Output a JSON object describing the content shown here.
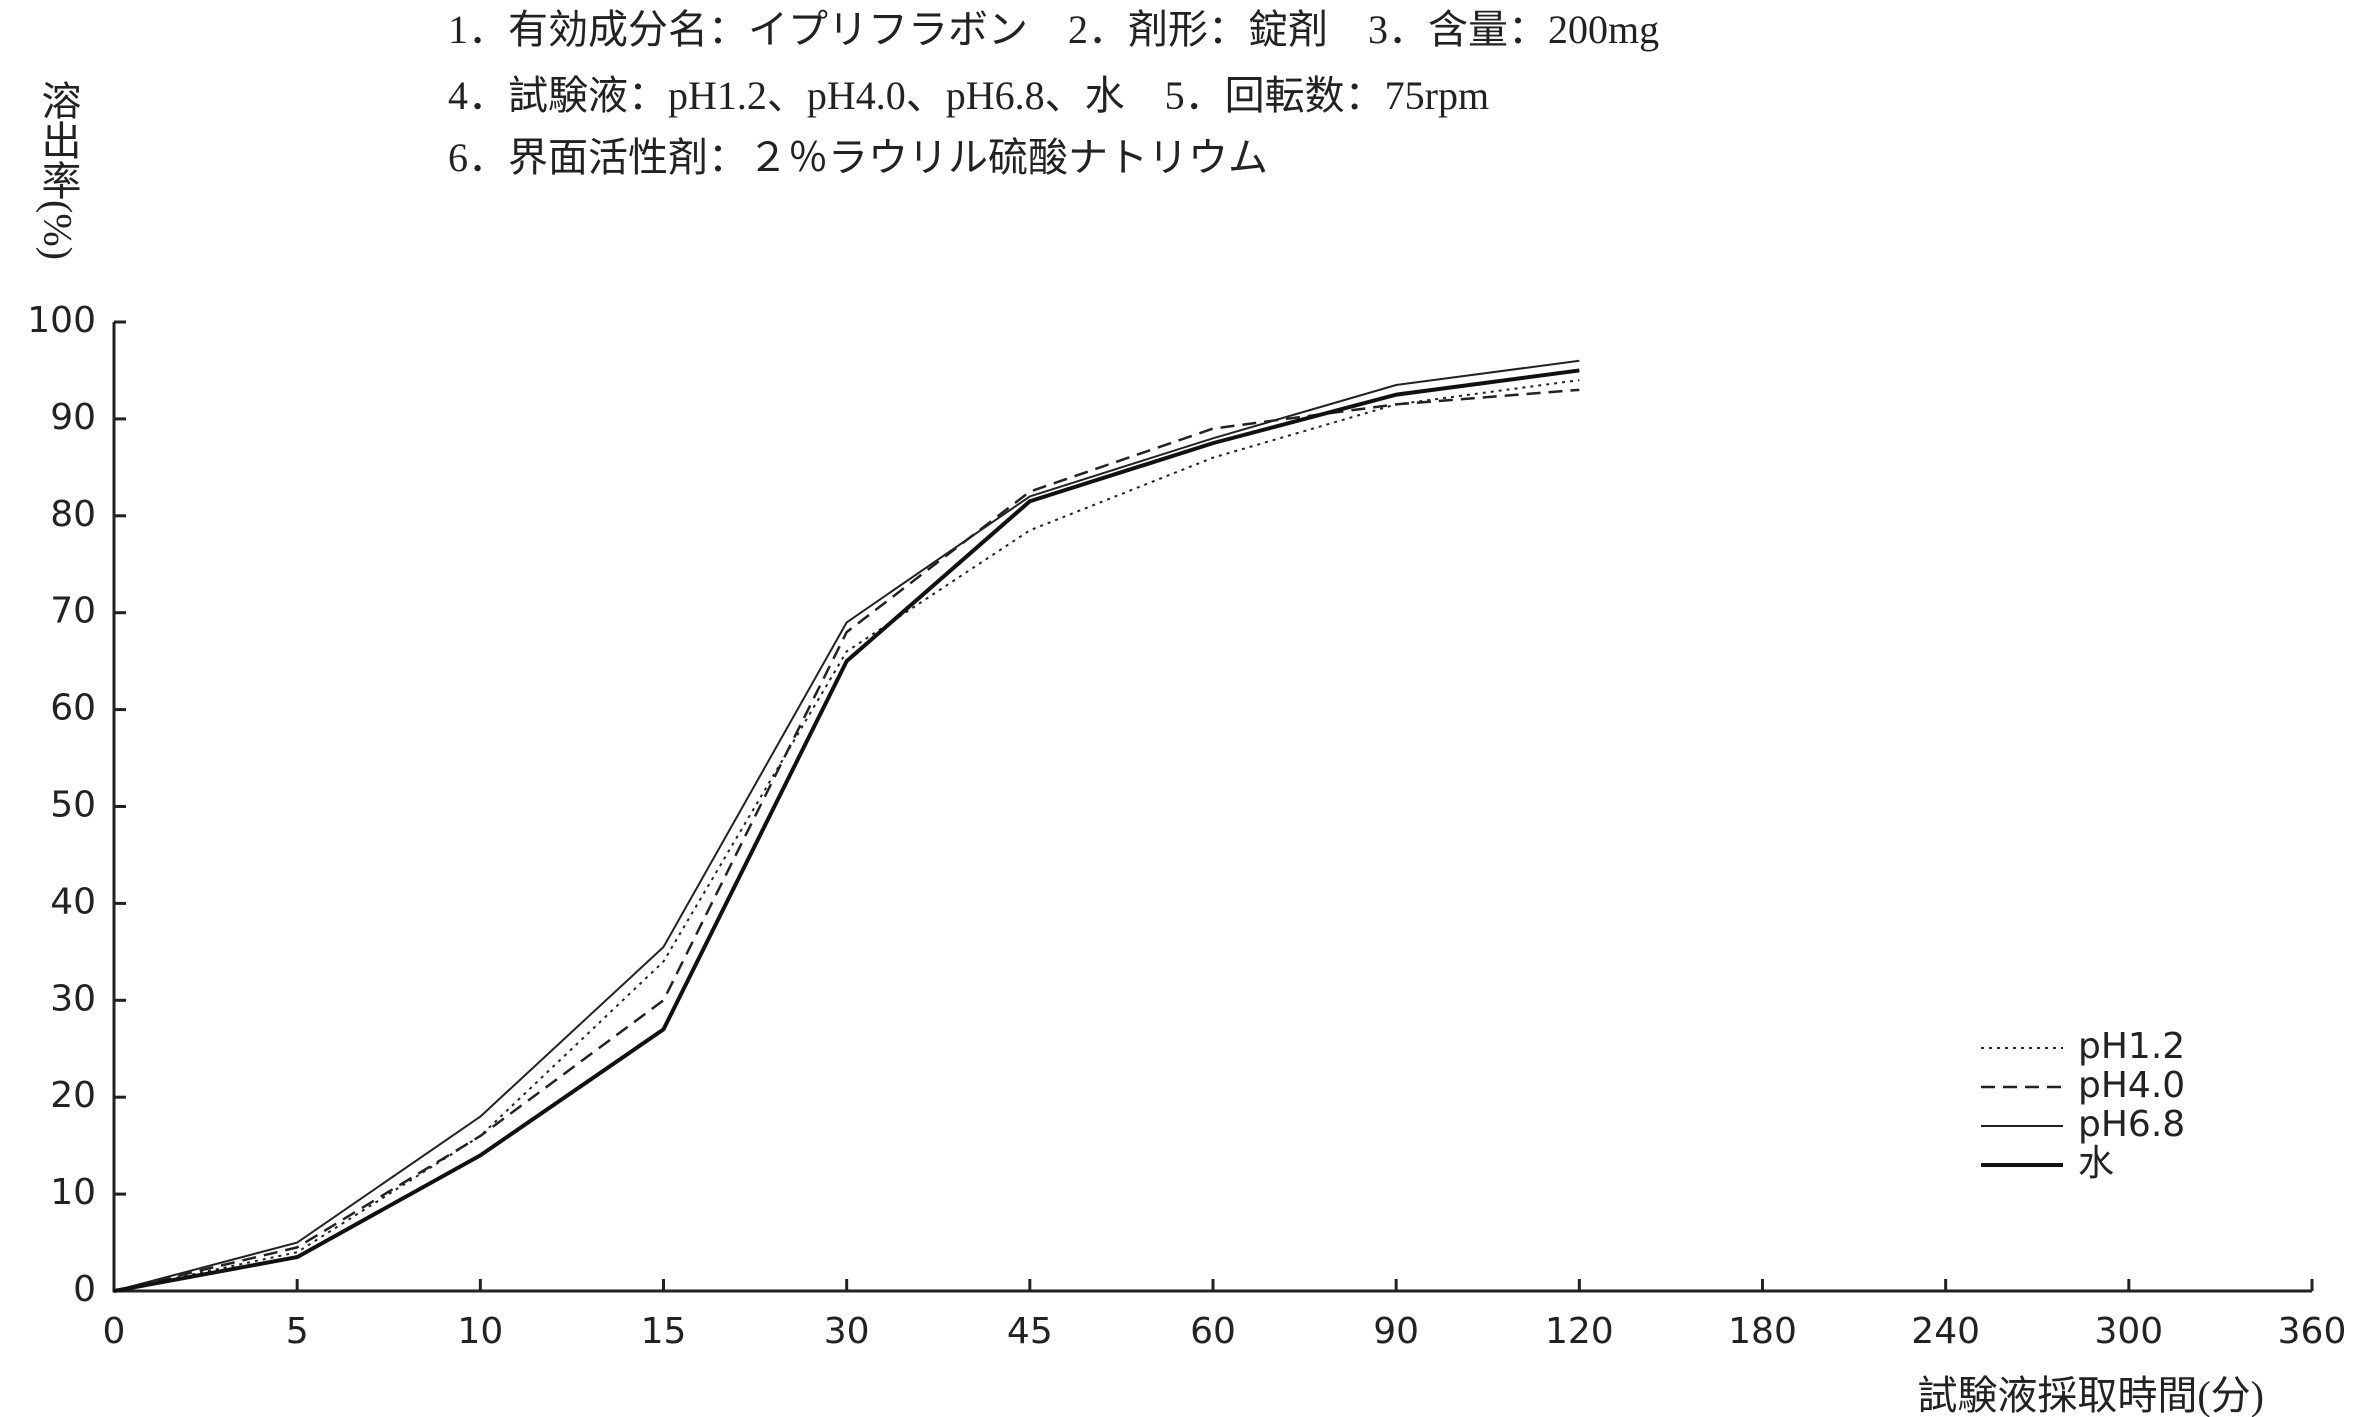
{
  "chart_data": {
    "type": "line",
    "annotations": [
      "1．有効成分名：イプリフラボン　2．剤形：錠剤　3．含量：200mg",
      "4．試験液：pH1.2、pH4.0、pH6.8、水　5．回転数：75rpm",
      "6．界面活性剤：２％ラウリル硫酸ナトリウム"
    ],
    "y_label": "溶出率(%)",
    "x_label": "試験液採取時間(分)",
    "categories": [
      0,
      5,
      10,
      15,
      30,
      45,
      60,
      90,
      120,
      180,
      240,
      300,
      360
    ],
    "series": [
      {
        "name": "pH1.2",
        "color": "#222222",
        "dash": "3,5",
        "width": 2,
        "values": [
          0,
          4,
          16,
          34,
          66,
          78.5,
          86,
          91.5,
          94,
          null,
          null,
          null,
          null
        ]
      },
      {
        "name": "pH4.0",
        "color": "#222222",
        "dash": "14,8",
        "width": 2.5,
        "values": [
          0,
          4.5,
          16,
          30,
          68,
          82.5,
          89,
          91.5,
          93,
          null,
          null,
          null,
          null
        ]
      },
      {
        "name": "pH6.8",
        "color": "#222222",
        "dash": "none",
        "width": 2,
        "values": [
          0,
          5,
          18,
          35.5,
          69,
          82,
          88,
          93.5,
          96,
          null,
          null,
          null,
          null
        ]
      },
      {
        "name": "水",
        "color": "#111111",
        "dash": "none",
        "width": 4,
        "values": [
          0,
          3.5,
          14,
          27,
          65,
          81.5,
          87.5,
          92.5,
          95,
          null,
          null,
          null,
          null
        ]
      }
    ],
    "ylim": [
      0,
      100
    ],
    "yticks": [
      0,
      10,
      20,
      30,
      40,
      50,
      60,
      70,
      80,
      90,
      100
    ],
    "legend": "lower right"
  }
}
